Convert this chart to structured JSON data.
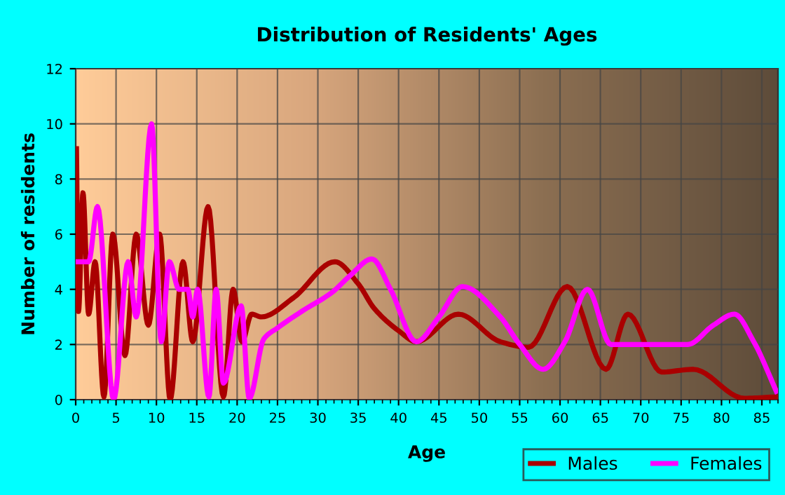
{
  "chart_data": {
    "type": "line",
    "title": "Distribution of Residents' Ages",
    "xlabel": "Age",
    "ylabel": "Number of residents",
    "xlim": [
      0,
      87
    ],
    "xticks": [
      0,
      5,
      10,
      15,
      20,
      25,
      30,
      35,
      40,
      45,
      50,
      55,
      60,
      65,
      70,
      75,
      80,
      85
    ],
    "ylim": [
      0,
      12
    ],
    "yticks": [
      0,
      2,
      4,
      6,
      8,
      10,
      12
    ],
    "grid": true,
    "legend": "bottom right",
    "line_style": "solid",
    "marker": "none",
    "series": [
      {
        "name": "Males",
        "color": "#aa0000",
        "x": [
          0.1,
          0.35,
          0.9,
          1.6,
          2.4,
          3.5,
          4.6,
          6.1,
          7.5,
          9.0,
          10.4,
          11.7,
          13.3,
          14.5,
          16.4,
          18.3,
          19.5,
          20.6,
          21.8,
          23,
          27,
          32.1,
          35,
          37,
          40,
          42.2,
          47.4,
          52.6,
          56.1,
          60.9,
          65.7,
          68.4,
          72.6,
          76.5,
          82.8,
          86.8
        ],
        "values": [
          9.1,
          3.2,
          7.5,
          3.1,
          5,
          0.1,
          6,
          1.6,
          6,
          2.7,
          6,
          0,
          5,
          2.1,
          7,
          0.1,
          4,
          2.1,
          3.1,
          3,
          3.7,
          5,
          4.2,
          3.3,
          2.5,
          2.1,
          3.1,
          2.1,
          1.9,
          4.1,
          1.1,
          3.1,
          1,
          1.1,
          0.05,
          0.1
        ]
      },
      {
        "name": "Females",
        "color": "#ff00ff",
        "x": [
          0.1,
          1.6,
          2.7,
          4.7,
          6.5,
          7.5,
          9.4,
          10.6,
          11.6,
          12.8,
          13.9,
          14.5,
          15.1,
          16.5,
          17.4,
          18.3,
          20.5,
          21.5,
          23.3,
          25,
          28,
          31.8,
          34,
          36.7,
          39,
          42.2,
          45,
          47.9,
          52.6,
          55,
          57.9,
          60.6,
          63.4,
          66.3,
          75.8,
          79,
          81.6,
          84,
          86.8
        ],
        "values": [
          5,
          5,
          7,
          0,
          5,
          3,
          10,
          2.1,
          5,
          4,
          4,
          3,
          4,
          0.1,
          4,
          0.6,
          3.4,
          0.05,
          2.2,
          2.6,
          3.2,
          3.9,
          4.5,
          5.1,
          4,
          2.1,
          3,
          4.1,
          3,
          2,
          1.1,
          2.1,
          4,
          2,
          2,
          2.7,
          3.1,
          2.1,
          0.3
        ]
      }
    ]
  }
}
